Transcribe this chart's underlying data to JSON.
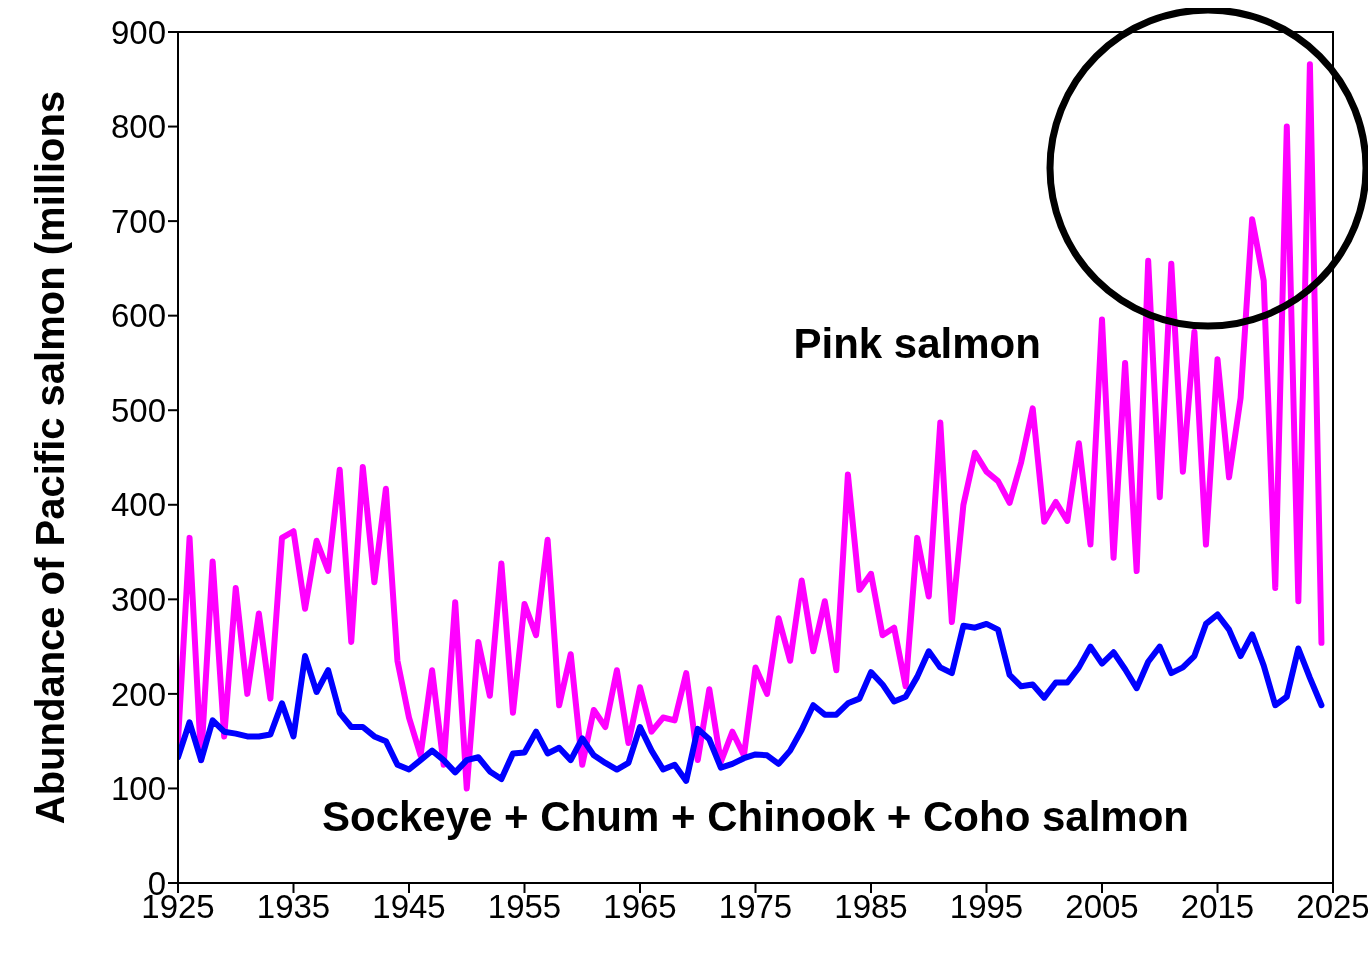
{
  "chart_data": {
    "type": "line",
    "ylabel": "Abundance of Pacific salmon (millions",
    "x": [
      1925,
      1926,
      1927,
      1928,
      1929,
      1930,
      1931,
      1932,
      1933,
      1934,
      1935,
      1936,
      1937,
      1938,
      1939,
      1940,
      1941,
      1942,
      1943,
      1944,
      1945,
      1946,
      1947,
      1948,
      1949,
      1950,
      1951,
      1952,
      1953,
      1954,
      1955,
      1956,
      1957,
      1958,
      1959,
      1960,
      1961,
      1962,
      1963,
      1964,
      1965,
      1966,
      1967,
      1968,
      1969,
      1970,
      1971,
      1972,
      1973,
      1974,
      1975,
      1976,
      1977,
      1978,
      1979,
      1980,
      1981,
      1982,
      1983,
      1984,
      1985,
      1986,
      1987,
      1988,
      1989,
      1990,
      1991,
      1992,
      1993,
      1994,
      1995,
      1996,
      1997,
      1998,
      1999,
      2000,
      2001,
      2002,
      2003,
      2004,
      2005,
      2006,
      2007,
      2008,
      2009,
      2010,
      2011,
      2012,
      2013,
      2014,
      2015,
      2016,
      2017,
      2018,
      2019,
      2020,
      2021,
      2022,
      2023,
      2024
    ],
    "series": [
      {
        "name": "Pink salmon",
        "color": "#ff00ff",
        "values": [
          150,
          365,
          130,
          340,
          155,
          312,
          200,
          285,
          195,
          365,
          372,
          290,
          362,
          330,
          437,
          255,
          440,
          318,
          417,
          235,
          175,
          135,
          225,
          125,
          297,
          100,
          255,
          198,
          338,
          180,
          295,
          262,
          363,
          188,
          242,
          125,
          183,
          165,
          225,
          148,
          207,
          160,
          175,
          172,
          222,
          130,
          205,
          128,
          160,
          135,
          228,
          200,
          280,
          235,
          320,
          245,
          298,
          225,
          432,
          310,
          327,
          262,
          270,
          208,
          365,
          303,
          487,
          276,
          400,
          455,
          435,
          425,
          402,
          445,
          502,
          382,
          403,
          383,
          465,
          358,
          596,
          344,
          550,
          330,
          658,
          408,
          655,
          435,
          583,
          358,
          554,
          429,
          513,
          702,
          637,
          312,
          800,
          298,
          866,
          254
        ]
      },
      {
        "name": "Sockeye + Chum + Chinook + Coho salmon",
        "color": "#0000ff",
        "values": [
          133,
          170,
          130,
          172,
          160,
          158,
          155,
          155,
          157,
          190,
          155,
          240,
          202,
          225,
          180,
          165,
          165,
          155,
          150,
          125,
          120,
          130,
          140,
          130,
          117,
          130,
          133,
          118,
          110,
          137,
          138,
          160,
          137,
          143,
          130,
          153,
          135,
          127,
          120,
          127,
          165,
          140,
          120,
          125,
          108,
          163,
          152,
          122,
          126,
          132,
          136,
          135,
          126,
          140,
          162,
          188,
          178,
          178,
          190,
          195,
          223,
          210,
          192,
          197,
          218,
          245,
          228,
          222,
          272,
          270,
          274,
          268,
          220,
          208,
          210,
          196,
          212,
          212,
          228,
          250,
          232,
          244,
          226,
          206,
          234,
          250,
          222,
          228,
          240,
          274,
          284,
          268,
          240,
          263,
          230,
          188,
          197,
          248,
          217,
          188
        ]
      }
    ],
    "xlim": [
      1925,
      2025
    ],
    "xticks": [
      1925,
      1935,
      1945,
      1955,
      1965,
      1975,
      1985,
      1995,
      2005,
      2015,
      2025
    ],
    "ylim": [
      0,
      900
    ],
    "yticks": [
      0,
      100,
      200,
      300,
      400,
      500,
      600,
      700,
      800,
      900
    ],
    "grid": false,
    "legend": false,
    "marker": "none",
    "line_style": "solid"
  }
}
